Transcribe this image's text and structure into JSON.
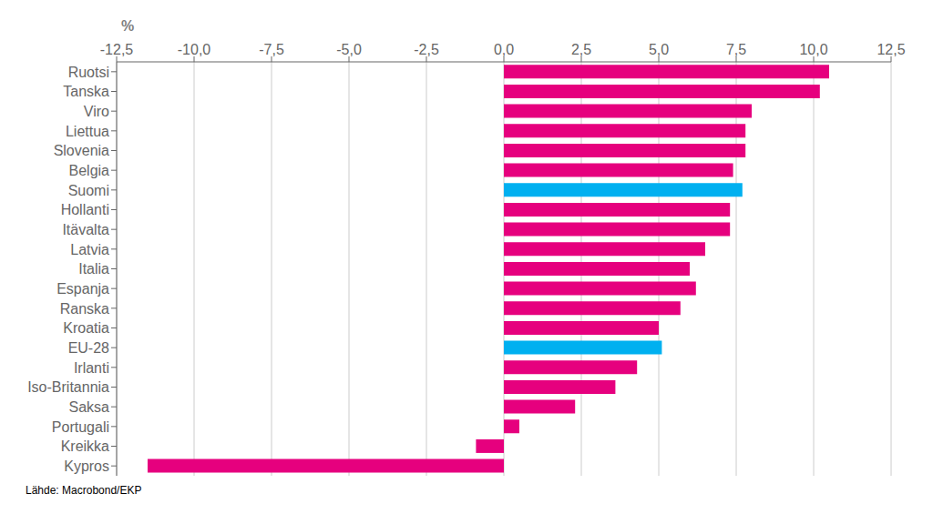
{
  "chart_data": {
    "type": "bar",
    "orientation": "horizontal",
    "categories": [
      "Ruotsi",
      "Tanska",
      "Viro",
      "Liettua",
      "Slovenia",
      "Belgia",
      "Suomi",
      "Hollanti",
      "Itävalta",
      "Latvia",
      "Italia",
      "Espanja",
      "Ranska",
      "Kroatia",
      "EU-28",
      "Irlanti",
      "Iso-Britannia",
      "Saksa",
      "Portugali",
      "Kreikka",
      "Kypros"
    ],
    "values": [
      10.5,
      10.2,
      8.0,
      7.8,
      7.8,
      7.4,
      7.7,
      7.3,
      7.3,
      6.5,
      6.0,
      6.2,
      5.7,
      5.0,
      5.1,
      4.3,
      3.6,
      2.3,
      0.5,
      -0.9,
      -11.5
    ],
    "colors": [
      "#e6007e",
      "#e6007e",
      "#e6007e",
      "#e6007e",
      "#e6007e",
      "#e6007e",
      "#00b0f0",
      "#e6007e",
      "#e6007e",
      "#e6007e",
      "#e6007e",
      "#e6007e",
      "#e6007e",
      "#e6007e",
      "#00b0f0",
      "#e6007e",
      "#e6007e",
      "#e6007e",
      "#e6007e",
      "#e6007e",
      "#e6007e"
    ],
    "xlim": [
      -12.5,
      12.5
    ],
    "xticks": [
      {
        "value": -12.5,
        "label": "-12,5"
      },
      {
        "value": -10.0,
        "label": "-10,0"
      },
      {
        "value": -7.5,
        "label": "-7,5"
      },
      {
        "value": -5.0,
        "label": "-5,0"
      },
      {
        "value": -2.5,
        "label": "-2,5"
      },
      {
        "value": 0.0,
        "label": "0,0"
      },
      {
        "value": 2.5,
        "label": "2,5"
      },
      {
        "value": 5.0,
        "label": "5,0"
      },
      {
        "value": 7.5,
        "label": "7,5"
      },
      {
        "value": 10.0,
        "label": "10,0"
      },
      {
        "value": 12.5,
        "label": "12,5"
      }
    ],
    "xlabel": "%",
    "annotations": [
      "Lähde: Macrobond/EKP"
    ],
    "grid": true
  }
}
